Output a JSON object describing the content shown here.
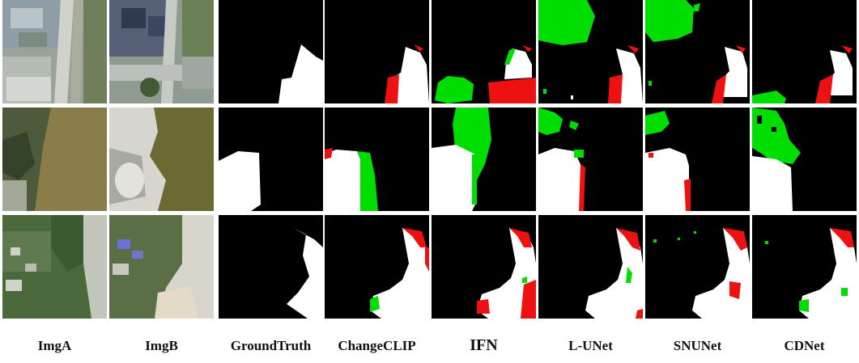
{
  "columns": [
    {
      "key": "imgA",
      "label": "ImgA"
    },
    {
      "key": "imgB",
      "label": "ImgB"
    },
    {
      "key": "gt",
      "label": "GroundTruth"
    },
    {
      "key": "changeclip",
      "label": "ChangeCLIP"
    },
    {
      "key": "ifn",
      "label": "IFN"
    },
    {
      "key": "lunet",
      "label": "L-UNet"
    },
    {
      "key": "snunet",
      "label": "SNUNet"
    },
    {
      "key": "cdnet",
      "label": "CDNet"
    }
  ],
  "rows": 3,
  "colors": {
    "background": "#000000",
    "true_positive": "#ffffff",
    "false_positive": "#00dd00",
    "false_negative": "#ee1111"
  }
}
